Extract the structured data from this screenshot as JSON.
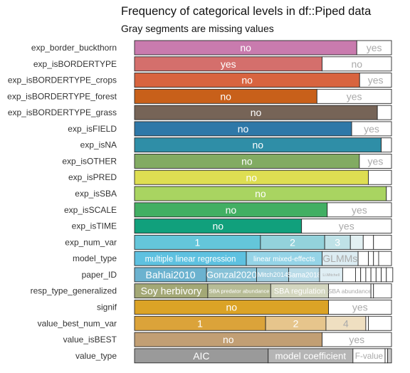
{
  "chart_data": {
    "type": "bar",
    "orientation": "horizontal",
    "stacked": true,
    "normalized": true,
    "title": "Frequency of categorical levels in df::Piped data",
    "subtitle": "Gray segments are missing values",
    "xlabel": "",
    "ylabel": "",
    "grid": false,
    "legend": "none",
    "rows": [
      {
        "variable": "exp_border_buckthorn",
        "segments": [
          {
            "label": "no",
            "fraction": 0.865,
            "color": "#c97bae",
            "text_color": "#ffffff"
          },
          {
            "label": "yes",
            "fraction": 0.135,
            "color": "#ffffff",
            "text_color": "#aaaaaa"
          }
        ]
      },
      {
        "variable": "exp_isBORDERTYPE",
        "segments": [
          {
            "label": "yes",
            "fraction": 0.73,
            "color": "#d46f6c",
            "text_color": "#ffffff"
          },
          {
            "label": "no",
            "fraction": 0.27,
            "color": "#ffffff",
            "text_color": "#aaaaaa"
          }
        ]
      },
      {
        "variable": "exp_isBORDERTYPE_crops",
        "segments": [
          {
            "label": "no",
            "fraction": 0.876,
            "color": "#d8643f",
            "text_color": "#ffffff"
          },
          {
            "label": "yes",
            "fraction": 0.124,
            "color": "#ffffff",
            "text_color": "#aaaaaa"
          }
        ]
      },
      {
        "variable": "exp_isBORDERTYPE_forest",
        "segments": [
          {
            "label": "no",
            "fraction": 0.71,
            "color": "#c8601a",
            "text_color": "#ffffff"
          },
          {
            "label": "yes",
            "fraction": 0.29,
            "color": "#ffffff",
            "text_color": "#aaaaaa"
          }
        ]
      },
      {
        "variable": "exp_isBORDERTYPE_grass",
        "segments": [
          {
            "label": "no",
            "fraction": 0.945,
            "color": "#766457",
            "text_color": "#ffffff"
          },
          {
            "label": "",
            "fraction": 0.055,
            "color": "#ffffff",
            "text_color": "#aaaaaa"
          }
        ]
      },
      {
        "variable": "exp_isFIELD",
        "segments": [
          {
            "label": "no",
            "fraction": 0.845,
            "color": "#2e78a8",
            "text_color": "#ffffff"
          },
          {
            "label": "yes",
            "fraction": 0.155,
            "color": "#ffffff",
            "text_color": "#aaaaaa"
          }
        ]
      },
      {
        "variable": "exp_isNA",
        "segments": [
          {
            "label": "no",
            "fraction": 0.96,
            "color": "#2f8ea7",
            "text_color": "#ffffff"
          },
          {
            "label": "",
            "fraction": 0.04,
            "color": "#ffffff",
            "text_color": "#aaaaaa"
          }
        ]
      },
      {
        "variable": "exp_isOTHER",
        "segments": [
          {
            "label": "no",
            "fraction": 0.875,
            "color": "#82ab62",
            "text_color": "#ffffff"
          },
          {
            "label": "yes",
            "fraction": 0.125,
            "color": "#ffffff",
            "text_color": "#aaaaaa"
          }
        ]
      },
      {
        "variable": "exp_isPRED",
        "segments": [
          {
            "label": "no",
            "fraction": 0.91,
            "color": "#dede52",
            "text_color": "#ffffff"
          },
          {
            "label": "",
            "fraction": 0.09,
            "color": "#ffffff",
            "text_color": "#aaaaaa"
          }
        ]
      },
      {
        "variable": "exp_isSBA",
        "segments": [
          {
            "label": "no",
            "fraction": 0.98,
            "color": "#a9d461",
            "text_color": "#ffffff"
          },
          {
            "label": "",
            "fraction": 0.02,
            "color": "#ffffff",
            "text_color": "#aaaaaa"
          }
        ]
      },
      {
        "variable": "exp_isSCALE",
        "segments": [
          {
            "label": "no",
            "fraction": 0.75,
            "color": "#42af63",
            "text_color": "#ffffff"
          },
          {
            "label": "yes",
            "fraction": 0.25,
            "color": "#ffffff",
            "text_color": "#aaaaaa"
          }
        ]
      },
      {
        "variable": "exp_isTIME",
        "segments": [
          {
            "label": "no",
            "fraction": 0.65,
            "color": "#11a07c",
            "text_color": "#ffffff"
          },
          {
            "label": "yes",
            "fraction": 0.35,
            "color": "#ffffff",
            "text_color": "#aaaaaa"
          }
        ]
      },
      {
        "variable": "exp_num_var",
        "segments": [
          {
            "label": "1",
            "fraction": 0.49,
            "color": "#64c6da",
            "text_color": "#ffffff"
          },
          {
            "label": "2",
            "fraction": 0.25,
            "color": "#93d2db",
            "text_color": "#ffffff"
          },
          {
            "label": "3",
            "fraction": 0.1,
            "color": "#bfe2e7",
            "text_color": "#ffffff"
          },
          {
            "label": "",
            "fraction": 0.05,
            "color": "#e3f1f3",
            "text_color": "#aaaaaa"
          },
          {
            "label": "",
            "fraction": 0.04,
            "color": "#ffffff",
            "text_color": "#aaaaaa"
          },
          {
            "label": "",
            "fraction": 0.07,
            "color": "#ffffff",
            "text_color": "#aaaaaa"
          }
        ]
      },
      {
        "variable": "model_type",
        "segments": [
          {
            "label": "multiple linear regression",
            "fraction": 0.435,
            "color": "#5ec1e0",
            "text_color": "#ffffff"
          },
          {
            "label": "linear mixed-effects",
            "fraction": 0.295,
            "color": "#95d4e7",
            "text_color": "#ffffff"
          },
          {
            "label": "GLMMs",
            "fraction": 0.14,
            "color": "#dcecf2",
            "text_color": "#aaaaaa"
          },
          {
            "label": "",
            "fraction": 0.04,
            "color": "#ffffff",
            "text_color": "#aaaaaa"
          },
          {
            "label": "",
            "fraction": 0.02,
            "color": "#ffffff",
            "text_color": "#aaaaaa"
          },
          {
            "label": "",
            "fraction": 0.02,
            "color": "#ffffff",
            "text_color": "#aaaaaa"
          },
          {
            "label": "",
            "fraction": 0.05,
            "color": "#ffffff",
            "text_color": "#aaaaaa"
          }
        ]
      },
      {
        "variable": "paper_ID",
        "segments": [
          {
            "label": "Bahlai2010",
            "fraction": 0.28,
            "color": "#6bb2cf",
            "text_color": "#ffffff"
          },
          {
            "label": "Gonzal2020",
            "fraction": 0.195,
            "color": "#86c1d7",
            "text_color": "#ffffff"
          },
          {
            "label": "Mitch2014",
            "fraction": 0.125,
            "color": "#a3cfe0",
            "text_color": "#ffffff"
          },
          {
            "label": "Sama2018",
            "fraction": 0.12,
            "color": "#b9dbe8",
            "text_color": "#ffffff"
          },
          {
            "label": "Li.Mitchell",
            "fraction": 0.09,
            "color": "#dfeef4",
            "text_color": "#aaaaaa"
          },
          {
            "label": "",
            "fraction": 0.05,
            "color": "#ffffff",
            "text_color": "#aaaaaa"
          },
          {
            "label": "",
            "fraction": 0.02,
            "color": "#ffffff",
            "text_color": "#aaaaaa"
          },
          {
            "label": "",
            "fraction": 0.02,
            "color": "#ffffff",
            "text_color": "#aaaaaa"
          },
          {
            "label": "",
            "fraction": 0.02,
            "color": "#ffffff",
            "text_color": "#aaaaaa"
          },
          {
            "label": "",
            "fraction": 0.02,
            "color": "#ffffff",
            "text_color": "#aaaaaa"
          },
          {
            "label": "",
            "fraction": 0.02,
            "color": "#ffffff",
            "text_color": "#aaaaaa"
          },
          {
            "label": "",
            "fraction": 0.02,
            "color": "#ffffff",
            "text_color": "#aaaaaa"
          },
          {
            "label": "",
            "fraction": 0.025,
            "color": "#ffffff",
            "text_color": "#aaaaaa"
          }
        ]
      },
      {
        "variable": "resp_type_generalized",
        "segments": [
          {
            "label": "Soy herbivory",
            "fraction": 0.285,
            "color": "#a3a876",
            "text_color": "#ffffff"
          },
          {
            "label": "SBA predator abundance",
            "fraction": 0.245,
            "color": "#b7bc96",
            "text_color": "#ffffff"
          },
          {
            "label": "SBA regulation",
            "fraction": 0.225,
            "color": "#d3d6bf",
            "text_color": "#ffffff"
          },
          {
            "label": "SBA abundance",
            "fraction": 0.165,
            "color": "#ffffff",
            "text_color": "#aaaaaa"
          },
          {
            "label": "",
            "fraction": 0.01,
            "color": "#ffffff",
            "text_color": "#aaaaaa"
          },
          {
            "label": "",
            "fraction": 0.07,
            "color": "#ffffff",
            "text_color": "#aaaaaa"
          }
        ]
      },
      {
        "variable": "signif",
        "segments": [
          {
            "label": "no",
            "fraction": 0.755,
            "color": "#dba326",
            "text_color": "#ffffff"
          },
          {
            "label": "yes",
            "fraction": 0.245,
            "color": "#ffffff",
            "text_color": "#aaaaaa"
          }
        ]
      },
      {
        "variable": "value_best_num_var",
        "segments": [
          {
            "label": "1",
            "fraction": 0.51,
            "color": "#dba33a",
            "text_color": "#ffffff"
          },
          {
            "label": "2",
            "fraction": 0.235,
            "color": "#e6c58c",
            "text_color": "#ffffff"
          },
          {
            "label": "4",
            "fraction": 0.155,
            "color": "#efdfc1",
            "text_color": "#aaaaaa"
          },
          {
            "label": "",
            "fraction": 0.01,
            "color": "#ffffff",
            "text_color": "#aaaaaa"
          },
          {
            "label": "",
            "fraction": 0.09,
            "color": "#ffffff",
            "text_color": "#aaaaaa"
          }
        ]
      },
      {
        "variable": "value_isBEST",
        "segments": [
          {
            "label": "no",
            "fraction": 0.73,
            "color": "#c29f74",
            "text_color": "#ffffff"
          },
          {
            "label": "yes",
            "fraction": 0.27,
            "color": "#ffffff",
            "text_color": "#aaaaaa"
          }
        ]
      },
      {
        "variable": "value_type",
        "segments": [
          {
            "label": "AIC",
            "fraction": 0.52,
            "color": "#9a9a9a",
            "text_color": "#ffffff"
          },
          {
            "label": "model coefficient",
            "fraction": 0.33,
            "color": "#b5b5b5",
            "text_color": "#ffffff"
          },
          {
            "label": "F-value",
            "fraction": 0.125,
            "color": "#ffffff",
            "text_color": "#aaaaaa"
          },
          {
            "label": "",
            "fraction": 0.01,
            "color": "#ffffff",
            "text_color": "#aaaaaa"
          },
          {
            "label": "",
            "fraction": 0.015,
            "color": "#cccccc",
            "text_color": "#aaaaaa"
          }
        ]
      }
    ]
  }
}
